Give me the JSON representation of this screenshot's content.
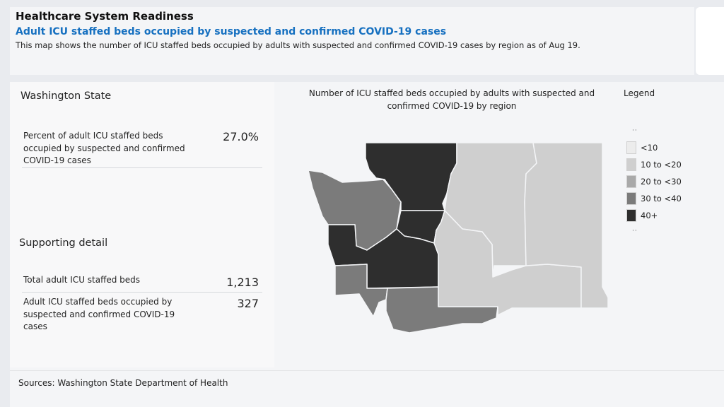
{
  "header": {
    "title": "Healthcare System Readiness",
    "subtitle": "Adult ICU staffed beds occupied by suspected and confirmed COVID-19 cases",
    "description": "This map shows the number of ICU staffed beds occupied by adults with suspected and confirmed COVID-19 cases by region as of Aug 19."
  },
  "summary": {
    "region_title": "Washington State",
    "percent_label": "Percent of adult ICU staffed beds occupied by suspected and confirmed COVID-19 cases",
    "percent_value": "27.0%",
    "supporting_title": "Supporting detail",
    "rows": [
      {
        "label": "Total adult ICU staffed beds",
        "value": "1,213"
      },
      {
        "label": "Adult ICU staffed beds occupied by suspected and confirmed COVID-19 cases",
        "value": "327"
      }
    ]
  },
  "map": {
    "title": "Number of ICU staffed beds occupied by adults with suspected and confirmed COVID-19 by region",
    "legend_title": "Legend",
    "legend": [
      {
        "label": "<10",
        "color": "#ececec"
      },
      {
        "label": "10 to <20",
        "color": "#cfcfcf"
      },
      {
        "label": "20 to <30",
        "color": "#a9a9a9"
      },
      {
        "label": "30 to <40",
        "color": "#7b7b7b"
      },
      {
        "label": "40+",
        "color": "#2e2e2e"
      }
    ],
    "colors": {
      "dark": "#2e2e2e",
      "medium_dark": "#7b7b7b",
      "light": "#cfcfcf",
      "border": "#f4f5f7"
    }
  },
  "footer": {
    "sources": "Sources: Washington State Department of Health"
  }
}
